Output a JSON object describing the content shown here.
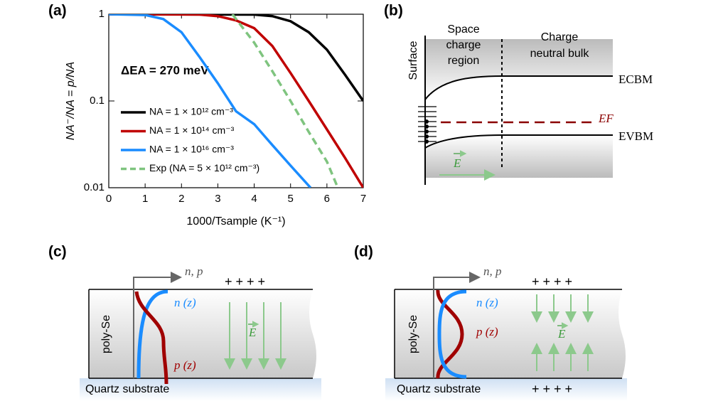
{
  "chart_data": {
    "type": "line",
    "panel": "(a)",
    "annotation": "ΔEA = 270 meV",
    "xlabel": "1000/Tsample (K⁻¹)",
    "ylabel": "NA⁻/NA = p/NA",
    "xlim": [
      0,
      7
    ],
    "ylim": [
      0.01,
      1
    ],
    "log_y": true,
    "xticks": [
      0,
      1,
      2,
      3,
      4,
      5,
      6,
      7
    ],
    "yticks": [
      0.01,
      0.1,
      1
    ],
    "series": [
      {
        "name": "NA = 1 × 10¹² cm⁻³",
        "color": "#000000",
        "style": "solid",
        "x": [
          0,
          4,
          4.5,
          5,
          5.5,
          6,
          6.5,
          7
        ],
        "values": [
          1,
          0.99,
          0.95,
          0.83,
          0.62,
          0.39,
          0.2,
          0.1
        ]
      },
      {
        "name": "NA = 1 × 10¹⁴ cm⁻³",
        "color": "#c00000",
        "style": "solid",
        "x": [
          0,
          2.5,
          3,
          3.5,
          4,
          4.5,
          5,
          5.5,
          6,
          6.5,
          7
        ],
        "values": [
          1,
          0.99,
          0.95,
          0.85,
          0.69,
          0.43,
          0.21,
          0.1,
          0.047,
          0.022,
          0.01
        ]
      },
      {
        "name": "NA = 1 × 10¹⁶ cm⁻³",
        "color": "#1a8cff",
        "style": "solid",
        "x": [
          0,
          1,
          1.5,
          2,
          2.5,
          3,
          3.5,
          4,
          4.5,
          5,
          5.55
        ],
        "values": [
          1,
          0.98,
          0.88,
          0.62,
          0.32,
          0.16,
          0.076,
          0.054,
          0.031,
          0.018,
          0.01
        ]
      },
      {
        "name": "Exp (NA = 5 × 10¹² cm⁻³)",
        "color": "#7fc47f",
        "style": "dashed",
        "x": [
          3.4,
          4,
          4.5,
          5,
          5.5,
          6,
          6.3
        ],
        "values": [
          1,
          0.47,
          0.22,
          0.1,
          0.044,
          0.02,
          0.01
        ]
      }
    ]
  },
  "panel_b": {
    "label": "(b)",
    "surface": "Surface",
    "scr": [
      "Space",
      "charge",
      "region"
    ],
    "bulk": [
      "Charge",
      "neutral bulk"
    ],
    "cbm": "ECBM",
    "vbm": "EVBM",
    "ef": "EF",
    "field": "E"
  },
  "panel_c": {
    "label": "(c)",
    "axis": "n, p",
    "n": "n (z)",
    "p": "p (z)",
    "material": "poly-Se",
    "substrate": "Quartz substrate",
    "charges_top": "+ + + +",
    "field": "E"
  },
  "panel_d": {
    "label": "(d)",
    "axis": "n, p",
    "n": "n (z)",
    "p": "p (z)",
    "material": "poly-Se",
    "substrate": "Quartz substrate",
    "charges_top": "+ + + +",
    "charges_bottom": "+ + + +",
    "field": "E"
  }
}
